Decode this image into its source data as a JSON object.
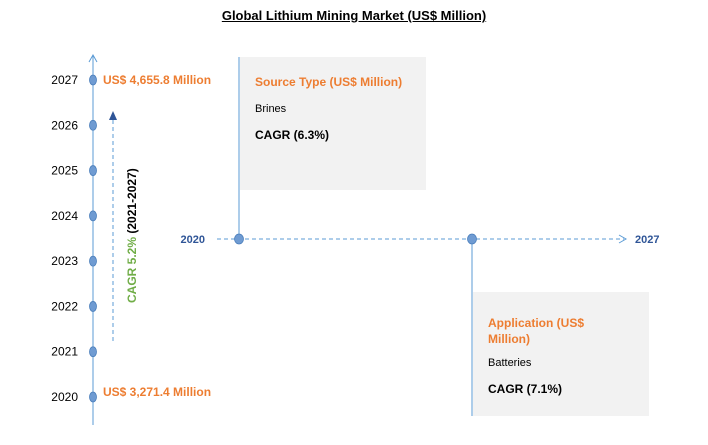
{
  "title": "Global Lithium Mining Market (US$ Million)",
  "chart_data": {
    "type": "timeline",
    "years": [
      "2020",
      "2021",
      "2022",
      "2023",
      "2024",
      "2025",
      "2026",
      "2027"
    ],
    "start_value_label": "US$ 3,271.4 Million",
    "end_value_label": "US$ 4,655.8 Million",
    "start_value": 3271.4,
    "end_value": 4655.8,
    "cagr_label": "CAGR 5.2%",
    "cagr_period": "(2021-2027)",
    "horizontal_axis": {
      "start": "2020",
      "end": "2027"
    }
  },
  "source_box": {
    "title": "Source Type (US$ Million)",
    "item": "Brines",
    "cagr": "CAGR (6.3%)"
  },
  "application_box": {
    "title": "Application (US$ Million)",
    "item": "Batteries",
    "cagr": "CAGR (7.1%)"
  },
  "colors": {
    "axis": "#5b9bd5",
    "dot": "#6f9bd2",
    "accent": "#ed7d31",
    "cagr": "#70ad47",
    "axis_label": "#2f5597"
  }
}
